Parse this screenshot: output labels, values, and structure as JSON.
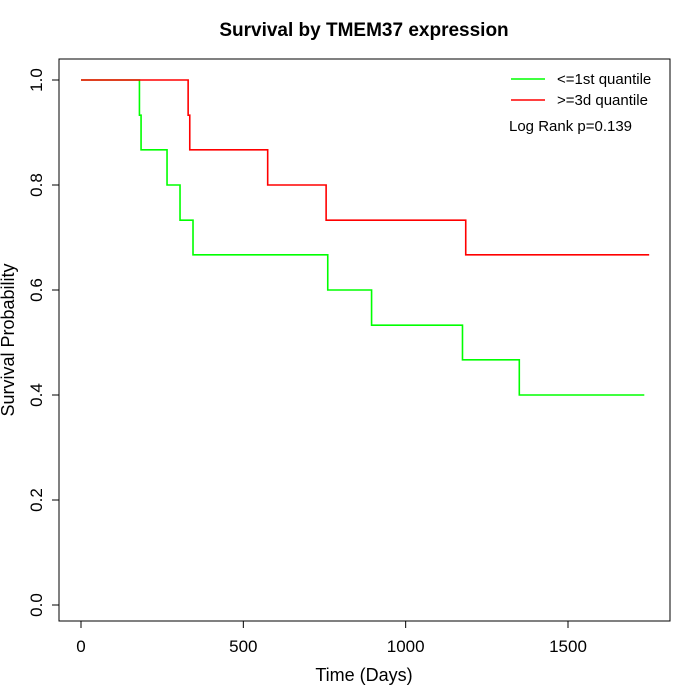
{
  "chart_data": {
    "type": "line",
    "title": "Survival by TMEM37 expression",
    "xlabel": "Time (Days)",
    "ylabel": "Survival Probability",
    "xlim": [
      0,
      1800
    ],
    "ylim": [
      0,
      1
    ],
    "xticks": [
      0,
      500,
      1000,
      1500
    ],
    "yticks": [
      0.0,
      0.2,
      0.4,
      0.6,
      0.8,
      1.0
    ],
    "xtick_labels": [
      "0",
      "500",
      "1000",
      "1500"
    ],
    "ytick_labels": [
      "0.0",
      "0.2",
      "0.4",
      "0.6",
      "0.8",
      "1.0"
    ],
    "grid": false,
    "legend_position": "top-right",
    "series": [
      {
        "name": "<=1st quantile",
        "color": "#00ff00",
        "step": true,
        "x": [
          0,
          180,
          185,
          265,
          305,
          345,
          760,
          895,
          1175,
          1350,
          1735
        ],
        "y": [
          1.0,
          0.933,
          0.867,
          0.8,
          0.733,
          0.667,
          0.6,
          0.533,
          0.467,
          0.4,
          0.4
        ]
      },
      {
        "name": ">=3d quantile",
        "color": "#ff0000",
        "step": true,
        "x": [
          0,
          330,
          335,
          575,
          755,
          1185,
          1750
        ],
        "y": [
          1.0,
          0.933,
          0.867,
          0.8,
          0.733,
          0.667,
          0.667
        ]
      }
    ],
    "annotations": [
      "Log Rank p=0.139"
    ]
  }
}
